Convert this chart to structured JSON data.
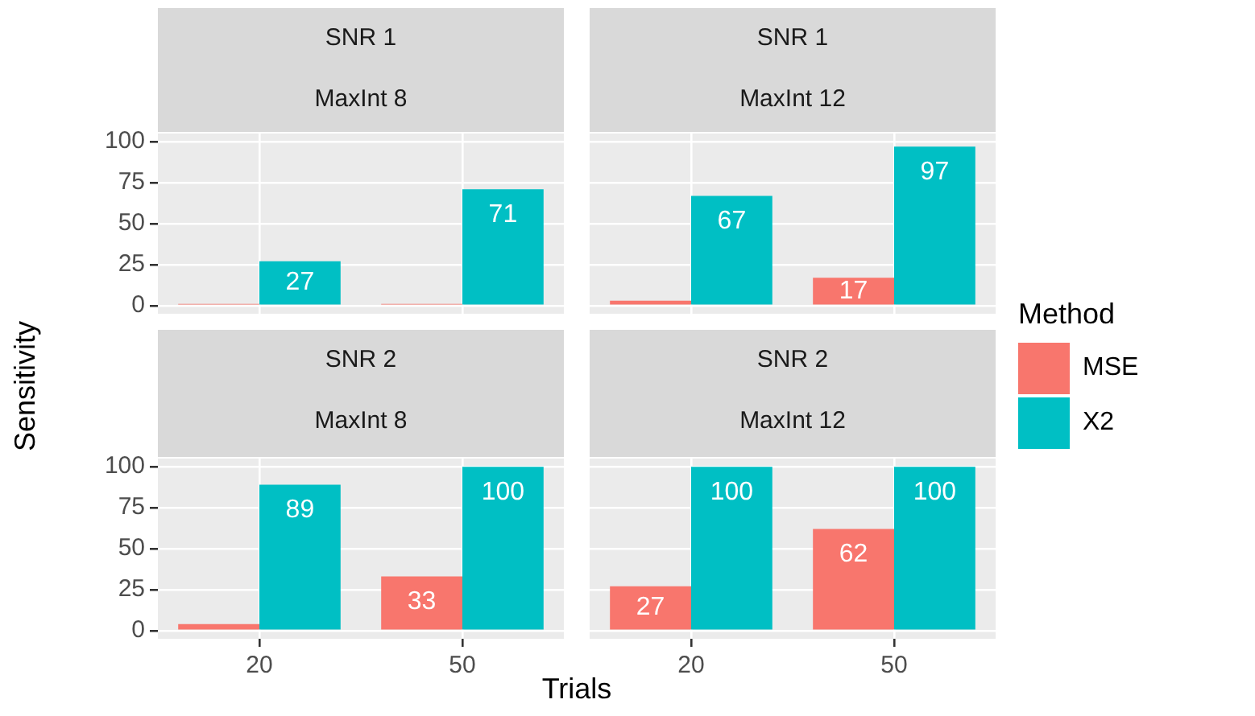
{
  "chart_data": [
    {
      "type": "bar",
      "title": "SNR 1",
      "subtitle": "MaxInt 8",
      "ylabel": "Sensitivity",
      "categories": [
        "20",
        "50"
      ],
      "series": [
        {
          "name": "MSE",
          "color": "#f8766d",
          "values": [
            1,
            1
          ],
          "value_labels": [
            null,
            null
          ]
        },
        {
          "name": "X2",
          "color": "#00bfc4",
          "values": [
            27,
            71
          ],
          "value_labels": [
            "27",
            "71"
          ]
        }
      ],
      "ylim": [
        -5,
        105
      ],
      "yticks": [
        0,
        25,
        50,
        75,
        100
      ],
      "grid": true,
      "tick_labels": "y",
      "legend": "right",
      "legend_title": "Method"
    },
    {
      "type": "bar",
      "title": "SNR 1",
      "subtitle": "MaxInt 12",
      "categories": [
        "20",
        "50"
      ],
      "series": [
        {
          "color": "#f8766d",
          "values": [
            3,
            17
          ],
          "value_labels": [
            null,
            "17"
          ]
        },
        {
          "color": "#00bfc4",
          "values": [
            67,
            97
          ],
          "value_labels": [
            "67",
            "97"
          ]
        }
      ],
      "ylim": [
        -5,
        105
      ],
      "yticks": [
        0,
        25,
        50,
        75,
        100
      ],
      "grid": true,
      "tick_labels": false
    },
    {
      "type": "bar",
      "title": "SNR 2",
      "subtitle": "MaxInt 8",
      "xlabel": "Trials",
      "categories": [
        "20",
        "50"
      ],
      "series": [
        {
          "color": "#f8766d",
          "values": [
            4,
            33
          ],
          "value_labels": [
            null,
            "33"
          ]
        },
        {
          "color": "#00bfc4",
          "values": [
            89,
            100
          ],
          "value_labels": [
            "89",
            "100"
          ]
        }
      ],
      "ylim": [
        -5,
        105
      ],
      "yticks": [
        0,
        25,
        50,
        75,
        100
      ],
      "grid": true
    },
    {
      "type": "bar",
      "title": "SNR 2",
      "subtitle": "MaxInt 12",
      "categories": [
        "20",
        "50"
      ],
      "series": [
        {
          "color": "#f8766d",
          "values": [
            27,
            62
          ],
          "value_labels": [
            "27",
            "62"
          ]
        },
        {
          "color": "#00bfc4",
          "values": [
            100,
            100
          ],
          "value_labels": [
            "100",
            "100"
          ]
        }
      ],
      "ylim": [
        -5,
        105
      ],
      "yticks": [
        0,
        25,
        50,
        75,
        100
      ],
      "grid": true,
      "tick_labels": "x"
    }
  ]
}
